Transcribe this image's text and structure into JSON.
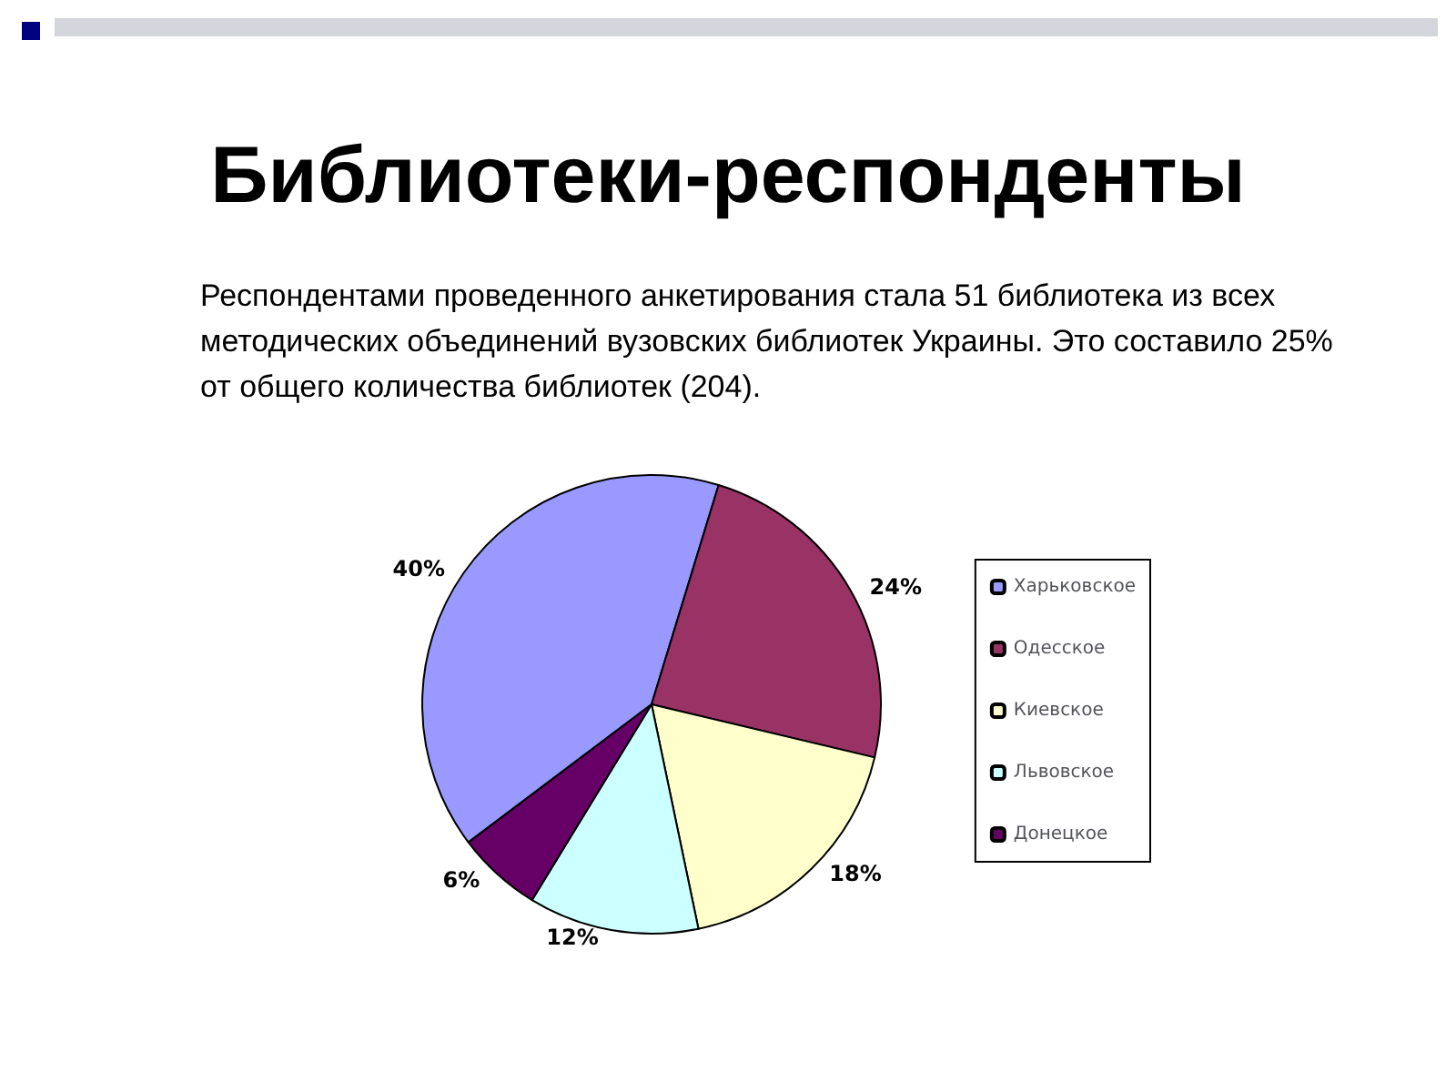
{
  "chart_data": {
    "type": "pie",
    "title": "Библиотеки-респонденты",
    "subtitle": "Респондентами проведенного анкетирования стала 51 библиотека из всех методических объединений вузовских библиотек Украины. Это составило 25% от общего количества библиотек (204).",
    "categories": [
      "Харьковское",
      "Одесское",
      "Киевское",
      "Львовское",
      "Донецкое"
    ],
    "values": [
      40,
      24,
      18,
      12,
      6
    ],
    "value_labels": [
      "40%",
      "24%",
      "18%",
      "12%",
      "6%"
    ],
    "colors": [
      "#9999ff",
      "#993366",
      "#ffffcc",
      "#ccffff",
      "#660066"
    ],
    "legend": "right"
  }
}
